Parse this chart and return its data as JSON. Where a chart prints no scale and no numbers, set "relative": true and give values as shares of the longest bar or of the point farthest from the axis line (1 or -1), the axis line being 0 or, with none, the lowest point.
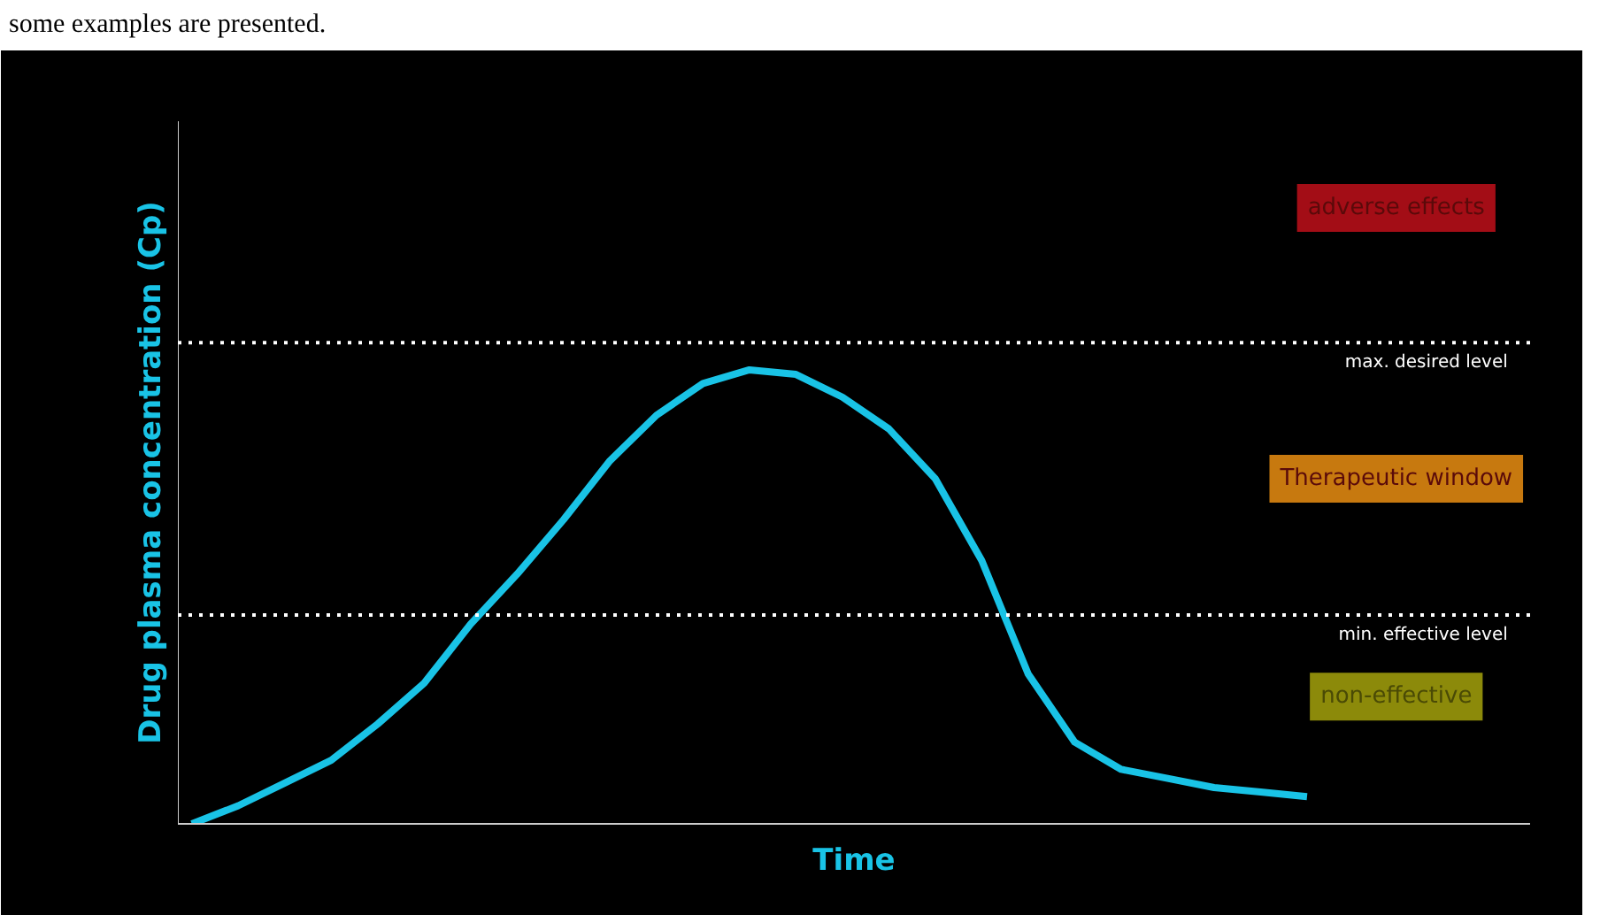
{
  "chart_data": {
    "type": "line",
    "relative": true,
    "xlabel": "Time",
    "ylabel": "Drug plasma concentration (Cp)",
    "categories": [
      null,
      null,
      null,
      null,
      null,
      null,
      null,
      null,
      null,
      null,
      null,
      null,
      null,
      null,
      null,
      null,
      null,
      null,
      null,
      null,
      null,
      null,
      null,
      null,
      null
    ],
    "series": [
      {
        "color": "#19c3e6",
        "values": [
          0,
          0.04,
          0.09,
          0.14,
          0.22,
          0.31,
          0.44,
          0.55,
          0.67,
          0.8,
          0.9,
          0.97,
          1,
          0.99,
          0.94,
          0.87,
          0.76,
          0.58,
          0.33,
          0.18,
          0.12,
          0.1,
          0.08,
          0.07,
          0.06
        ]
      }
    ],
    "ref_lines": [
      {
        "axis": "y",
        "value": 1.06,
        "label": "max. desired level",
        "color": "#ffffff",
        "line_style": "dotted"
      },
      {
        "axis": "y",
        "value": 0.46,
        "label": "min. effective level",
        "color": "#ffffff",
        "line_style": "dotted"
      }
    ],
    "annotations": [
      "some examples are presented.",
      "adverse effects",
      "Therapeutic window",
      "non-effective"
    ],
    "grid": false,
    "marker": "none",
    "line_style": "solid"
  }
}
